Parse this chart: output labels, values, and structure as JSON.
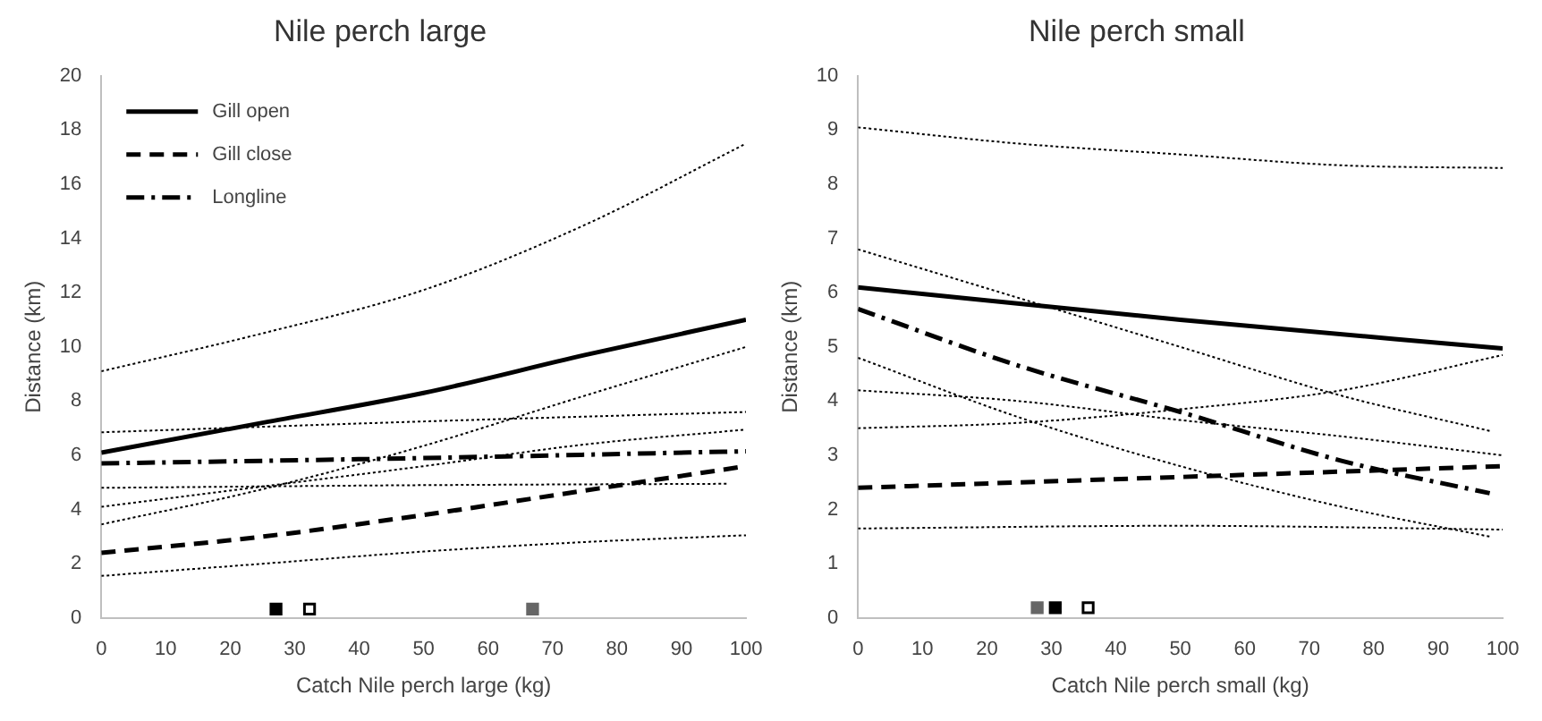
{
  "chart_data": [
    {
      "type": "line",
      "title": "Nile perch large",
      "xlabel": "Catch Nile perch large (kg)",
      "ylabel": "Distance (km)",
      "xlim": [
        0,
        100
      ],
      "xticks": [
        0,
        10,
        20,
        30,
        40,
        50,
        60,
        70,
        80,
        90,
        100
      ],
      "ylim": [
        0,
        20
      ],
      "yticks": [
        0,
        2,
        4,
        6,
        8,
        10,
        12,
        14,
        16,
        18,
        20
      ],
      "grid": false,
      "legend": "top left",
      "marker": "none",
      "series": [
        {
          "name": "Gill open",
          "color": "#000000",
          "line_style": "solid",
          "x": [
            0,
            25,
            50,
            75,
            100
          ],
          "values": [
            6.1,
            7.2,
            8.3,
            9.7,
            11.0
          ]
        },
        {
          "name": "Gill close",
          "color": "#000000",
          "line_style": "dashed",
          "x": [
            0,
            25,
            50,
            75,
            100
          ],
          "values": [
            2.4,
            3.0,
            3.8,
            4.7,
            5.6
          ]
        },
        {
          "name": "Longline",
          "color": "#000000",
          "line_style": "dashdot",
          "x": [
            0,
            50,
            100
          ],
          "values": [
            5.7,
            5.9,
            6.15
          ]
        },
        {
          "color": "#000000",
          "line_style": "dotted",
          "x": [
            0,
            25,
            50,
            75,
            100
          ],
          "values": [
            9.1,
            10.5,
            12.1,
            14.5,
            17.5
          ]
        },
        {
          "color": "#000000",
          "line_style": "dotted",
          "x": [
            0,
            25,
            50,
            75,
            100
          ],
          "values": [
            4.1,
            4.85,
            5.6,
            6.4,
            6.95
          ]
        },
        {
          "color": "#000000",
          "line_style": "dotted",
          "x": [
            0,
            25,
            50,
            75,
            100
          ],
          "values": [
            1.55,
            2.0,
            2.45,
            2.8,
            3.05
          ]
        },
        {
          "color": "#000000",
          "line_style": "dotted",
          "x": [
            0,
            25,
            50,
            75,
            100
          ],
          "values": [
            3.45,
            4.75,
            6.35,
            8.2,
            10.0
          ]
        },
        {
          "color": "#000000",
          "line_style": "dotted",
          "x": [
            0,
            50,
            100
          ],
          "values": [
            6.85,
            7.25,
            7.6
          ]
        },
        {
          "color": "#000000",
          "line_style": "dotted",
          "x": [
            0,
            50,
            97
          ],
          "values": [
            4.8,
            4.9,
            4.95
          ]
        },
        {
          "type": "scatter",
          "marker": "square",
          "x": [
            27.1,
            32.3,
            66.9
          ],
          "values": [
            0.33,
            0.33,
            0.33
          ],
          "colors": [
            "#000000",
            "#ffffff",
            "#666666"
          ]
        }
      ]
    },
    {
      "type": "line",
      "title": "Nile perch small",
      "xlabel": "Catch Nile perch small (kg)",
      "ylabel": "Distance (km)",
      "xlim": [
        0,
        100
      ],
      "xticks": [
        0,
        10,
        20,
        30,
        40,
        50,
        60,
        70,
        80,
        90,
        100
      ],
      "ylim": [
        0,
        10
      ],
      "yticks": [
        0,
        1,
        2,
        3,
        4,
        5,
        6,
        7,
        8,
        9,
        10
      ],
      "grid": false,
      "marker": "none",
      "series": [
        {
          "color": "#000000",
          "line_style": "solid",
          "x": [
            0,
            50,
            100
          ],
          "values": [
            6.1,
            5.5,
            4.97
          ]
        },
        {
          "color": "#000000",
          "line_style": "dashed",
          "x": [
            0,
            50,
            100
          ],
          "values": [
            2.4,
            2.6,
            2.8
          ]
        },
        {
          "color": "#000000",
          "line_style": "dashdot",
          "x": [
            0,
            25,
            50,
            75,
            98
          ],
          "values": [
            5.7,
            4.65,
            3.8,
            2.9,
            2.3
          ]
        },
        {
          "color": "#000000",
          "line_style": "dotted",
          "x": [
            0,
            25,
            50,
            75,
            100
          ],
          "values": [
            9.05,
            8.75,
            8.55,
            8.35,
            8.3
          ]
        },
        {
          "color": "#000000",
          "line_style": "dotted",
          "x": [
            0,
            25,
            50,
            75,
            100
          ],
          "values": [
            4.2,
            4.0,
            3.65,
            3.35,
            3.0
          ]
        },
        {
          "color": "#000000",
          "line_style": "dotted",
          "x": [
            0,
            50,
            100
          ],
          "values": [
            1.65,
            1.7,
            1.63
          ]
        },
        {
          "color": "#000000",
          "line_style": "dotted",
          "x": [
            0,
            25,
            50,
            75,
            100
          ],
          "values": [
            3.5,
            3.6,
            3.85,
            4.2,
            4.85
          ]
        },
        {
          "color": "#000000",
          "line_style": "dotted",
          "x": [
            0,
            25,
            50,
            75,
            98
          ],
          "values": [
            6.8,
            5.9,
            5.0,
            4.1,
            3.45
          ]
        },
        {
          "color": "#000000",
          "line_style": "dotted",
          "x": [
            0,
            25,
            50,
            75,
            98
          ],
          "values": [
            4.8,
            3.7,
            2.8,
            2.05,
            1.5
          ]
        },
        {
          "type": "scatter",
          "marker": "square",
          "x": [
            27.8,
            30.6,
            35.7
          ],
          "values": [
            0.19,
            0.19,
            0.19
          ],
          "colors": [
            "#666666",
            "#000000",
            "#ffffff"
          ]
        }
      ]
    }
  ]
}
